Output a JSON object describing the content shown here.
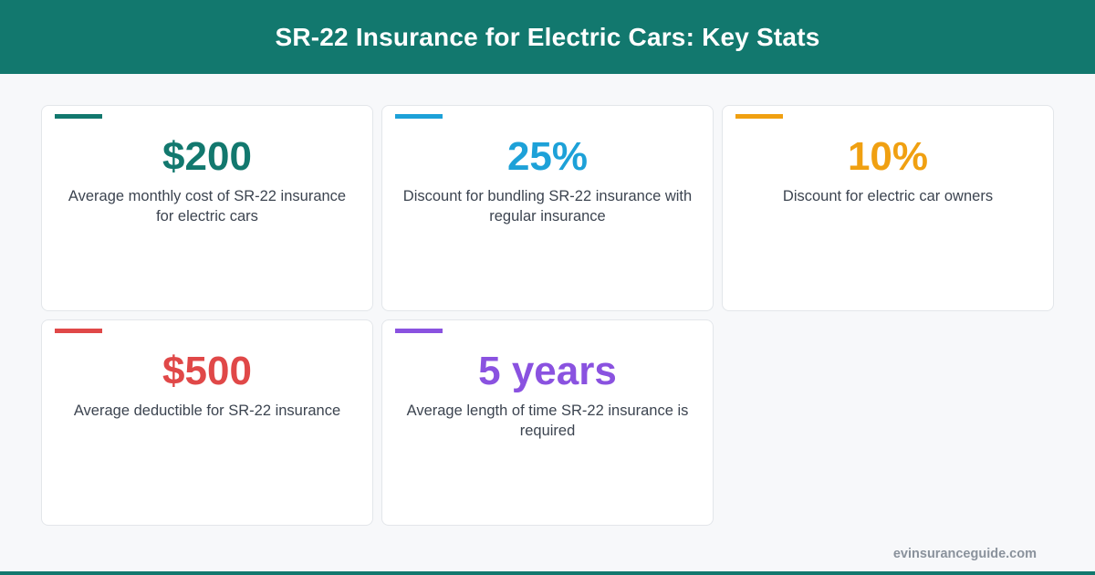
{
  "header": {
    "title": "SR-22 Insurance for Electric Cars: Key Stats",
    "color": "#12786e"
  },
  "stats": [
    {
      "value": "$200",
      "description": "Average monthly cost of SR-22 insurance for electric cars",
      "color": "#12786e"
    },
    {
      "value": "25%",
      "description": "Discount for bundling SR-22 insurance with regular insurance",
      "color": "#1da1d8"
    },
    {
      "value": "10%",
      "description": "Discount for electric car owners",
      "color": "#f0a011"
    },
    {
      "value": "$500",
      "description": "Average deductible for SR-22 insurance",
      "color": "#e04848"
    },
    {
      "value": "5 years",
      "description": "Average length of time SR-22 insurance is required",
      "color": "#8a52e0"
    }
  ],
  "footer": {
    "site": "evinsuranceguide.com"
  }
}
